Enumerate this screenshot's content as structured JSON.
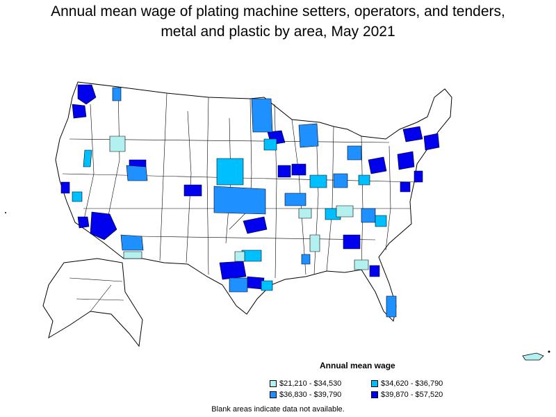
{
  "title_line1": "Annual mean wage of plating machine setters, operators, and tenders,",
  "title_line2": "metal and plastic by area, May 2021",
  "legend": {
    "title": "Annual mean wage",
    "items": [
      {
        "label": "$21,210 - $34,530",
        "color": "#b3f0f0"
      },
      {
        "label": "$34,620 - $36,790",
        "color": "#00bfff"
      },
      {
        "label": "$36,830 - $39,790",
        "color": "#1e90ff"
      },
      {
        "label": "$39,870 - $57,520",
        "color": "#0000ee"
      }
    ]
  },
  "note": "Blank areas indicate data not available."
}
